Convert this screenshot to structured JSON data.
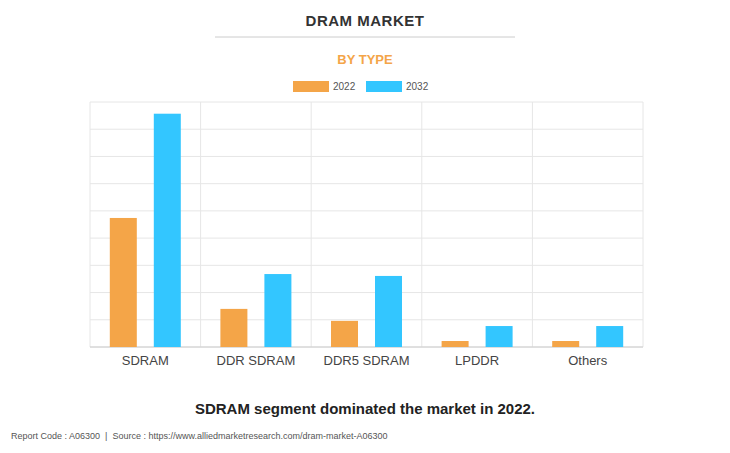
{
  "chart_data": {
    "type": "bar",
    "title": "DRAM MARKET",
    "subtitle": "BY TYPE",
    "categories": [
      "SDRAM",
      "DDR SDRAM",
      "DDR5 SDRAM",
      "LPDDR",
      "Others"
    ],
    "series": [
      {
        "name": "2022",
        "color": "#f4a548",
        "values": [
          4.74,
          1.4,
          0.96,
          0.22,
          0.22
        ]
      },
      {
        "name": "2032",
        "color": "#33c6ff",
        "values": [
          8.57,
          2.68,
          2.61,
          0.77,
          0.77
        ]
      }
    ],
    "ylim": [
      0,
      9
    ],
    "yticks": [
      0,
      1,
      2,
      3,
      4,
      5,
      6,
      7,
      8,
      9
    ],
    "grid": true,
    "legend": "top",
    "tick_labels": "x",
    "caption": "SDRAM segment dominated the market in 2022.",
    "footer": "Report Code : A06300  |  Source : https://www.alliedmarketresearch.com/dram-market-A06300"
  }
}
